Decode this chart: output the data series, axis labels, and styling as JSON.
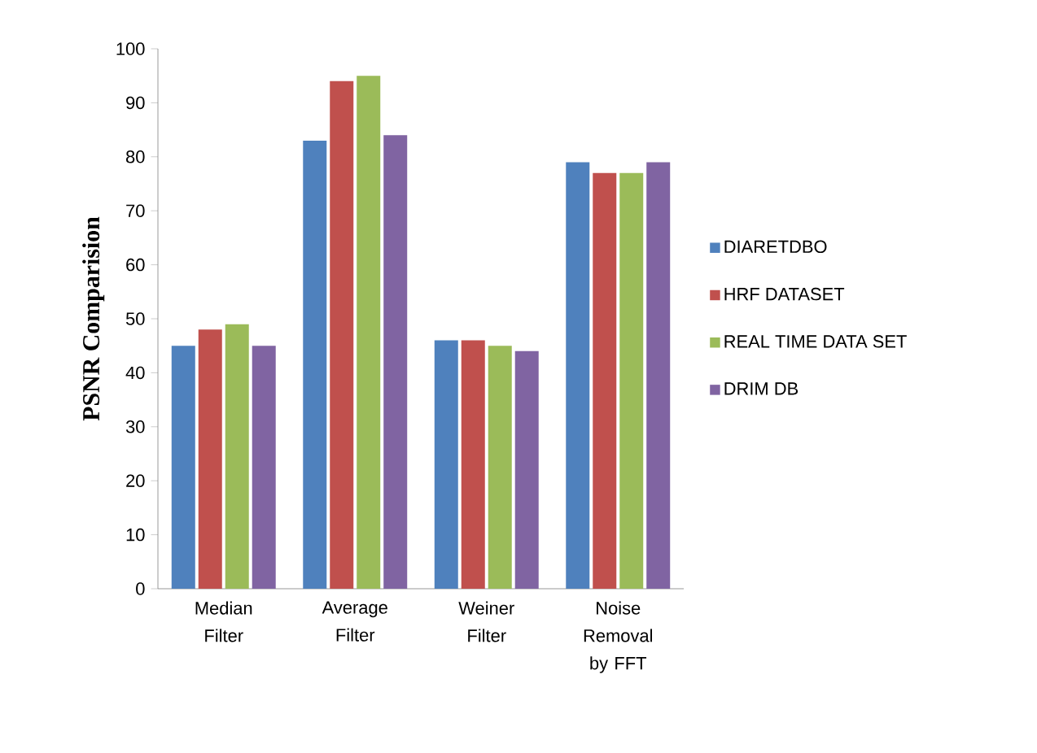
{
  "chart_data": {
    "type": "bar",
    "ylabel": "PSNR Comparision",
    "categories": [
      "Median Filter",
      "Average Filter",
      "Weiner Filter",
      "Noise Removal by FFT"
    ],
    "series": [
      {
        "name": "DIARETDBO",
        "color": "#4f81bd",
        "values": [
          45,
          83,
          46,
          79
        ]
      },
      {
        "name": "HRF DATASET",
        "color": "#c0504d",
        "values": [
          48,
          94,
          46,
          77
        ]
      },
      {
        "name": "REAL TIME DATA SET",
        "color": "#9bbb59",
        "values": [
          49,
          95,
          45,
          77
        ]
      },
      {
        "name": "DRIM DB",
        "color": "#8064a2",
        "values": [
          45,
          84,
          44,
          79
        ]
      }
    ],
    "ylim": [
      0,
      100
    ],
    "yticks": [
      0,
      10,
      20,
      30,
      40,
      50,
      60,
      70,
      80,
      90,
      100
    ],
    "legend": "right",
    "grid": false
  }
}
